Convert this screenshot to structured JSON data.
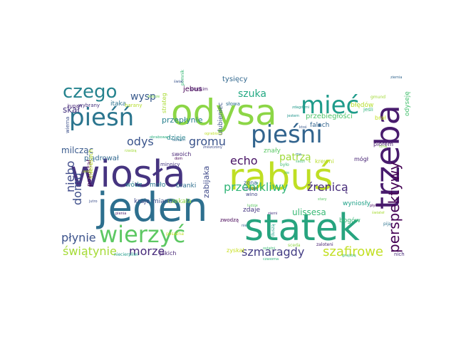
{
  "wordcloud": {
    "words": [
      {
        "text": "jeden",
        "color": "#2d6f8e"
      },
      {
        "text": "wiosła",
        "color": "#463480"
      },
      {
        "text": "statek",
        "color": "#27a47f"
      },
      {
        "text": "odysa",
        "color": "#8cd646"
      },
      {
        "text": "rabuś",
        "color": "#bfdf24"
      },
      {
        "text": "trzeba",
        "color": "#481b6d"
      },
      {
        "text": "pieśni",
        "color": "#32648e"
      },
      {
        "text": "wierzyć",
        "color": "#5dc863"
      },
      {
        "text": "pieśń",
        "color": "#2b758e"
      },
      {
        "text": "mieć",
        "color": "#1e9b8a"
      },
      {
        "text": "czego",
        "color": "#25838e"
      },
      {
        "text": "perspektywy",
        "color": "#440154"
      },
      {
        "text": "szafirowe",
        "color": "#c2df23"
      },
      {
        "text": "szmaragdy",
        "color": "#433d84"
      },
      {
        "text": "świątynie",
        "color": "#a5db36"
      },
      {
        "text": "płynie",
        "color": "#3b528b"
      },
      {
        "text": "morze",
        "color": "#472a7a"
      },
      {
        "text": "niebo",
        "color": "#3e4989"
      },
      {
        "text": "echo",
        "color": "#471164"
      },
      {
        "text": "domu",
        "color": "#3d4e8a"
      },
      {
        "text": "odys",
        "color": "#3a548c"
      },
      {
        "text": "przenikliwy",
        "color": "#34b679"
      },
      {
        "text": "źrenicą",
        "color": "#472c7a"
      },
      {
        "text": "gromu",
        "color": "#3a538b"
      },
      {
        "text": "szuka",
        "color": "#23a983"
      },
      {
        "text": "patrzą",
        "color": "#a0da39"
      },
      {
        "text": "wysp",
        "color": "#38598c"
      },
      {
        "text": "skał",
        "color": "#46337f"
      },
      {
        "text": "milcząc",
        "color": "#38598c"
      },
      {
        "text": "ulissesa",
        "color": "#3aba76"
      },
      {
        "text": "przebiegłości",
        "color": "#50c46a"
      },
      {
        "text": "zabijaka",
        "color": "#3e4989"
      },
      {
        "text": "przepłynie",
        "color": "#27808e"
      },
      {
        "text": "tysięcy",
        "color": "#31678e"
      },
      {
        "text": "jebus",
        "color": "#440154"
      },
      {
        "text": "plądrował",
        "color": "#31688e"
      },
      {
        "text": "dzieje",
        "color": "#26828e"
      },
      {
        "text": "branki",
        "color": "#2e6e8e"
      },
      {
        "text": "kraje",
        "color": "#3e4a89"
      },
      {
        "text": "czekała",
        "color": "#8ed645"
      },
      {
        "text": "miano",
        "color": "#3b518b"
      },
      {
        "text": "wódz",
        "color": "#277f8e"
      },
      {
        "text": "mało",
        "color": "#2a788e"
      },
      {
        "text": "zdaje",
        "color": "#453581"
      },
      {
        "text": "bogów",
        "color": "#37b878"
      },
      {
        "text": "wyniosły",
        "color": "#1fa188"
      },
      {
        "text": "falach",
        "color": "#32648e"
      },
      {
        "text": "błędów",
        "color": "#b5de2b"
      },
      {
        "text": "itaka",
        "color": "#2c728e"
      },
      {
        "text": "pozostał",
        "color": "#440154"
      },
      {
        "text": "ulubieniec",
        "color": "#3b528b"
      },
      {
        "text": "znały",
        "color": "#5ac864"
      },
      {
        "text": "jakich",
        "color": "#482677"
      },
      {
        "text": "zyskał",
        "color": "#c8e020"
      },
      {
        "text": "swoich",
        "color": "#482677"
      },
      {
        "text": "piórem",
        "color": "#481a6c"
      },
      {
        "text": "mógł",
        "color": "#482475"
      },
      {
        "text": "zona",
        "color": "#31668e"
      },
      {
        "text": "może",
        "color": "#38598c"
      },
      {
        "text": "wino",
        "color": "#404588"
      },
      {
        "text": "krewni",
        "color": "#b8de29"
      },
      {
        "text": "brał",
        "color": "#c2df23"
      },
      {
        "text": "interesach",
        "color": "#bddf26"
      },
      {
        "text": "odyseję",
        "color": "#46c06f"
      },
      {
        "text": "wierna",
        "color": "#3c508b"
      },
      {
        "text": "strateg",
        "color": "#a8db34"
      },
      {
        "text": "słowa",
        "color": "#2e6f8e"
      },
      {
        "text": "jeśli",
        "color": "#31b57b"
      },
      {
        "text": "nich",
        "color": "#472d7b"
      },
      {
        "text": "zwodzą",
        "color": "#440154"
      },
      {
        "text": "minnicy",
        "color": "#453882"
      },
      {
        "text": "barany",
        "color": "#b5de2b"
      },
      {
        "text": "żupan",
        "color": "#482878"
      },
      {
        "text": "wybrany",
        "color": "#46327e"
      },
      {
        "text": "pomnik",
        "color": "#38b977"
      },
      {
        "text": "skodkim",
        "color": "#48186a"
      },
      {
        "text": "zniszczony",
        "color": "#3e4c8a"
      },
      {
        "text": "sceda",
        "color": "#8fd744"
      },
      {
        "text": "zaloteni",
        "color": "#482173"
      },
      {
        "text": "rzną",
        "color": "#89d548"
      },
      {
        "text": "piją",
        "color": "#2c738e"
      },
      {
        "text": "duszą",
        "color": "#1fa187"
      },
      {
        "text": "posażna",
        "color": "#c0df25"
      },
      {
        "text": "niecierpliwi",
        "color": "#1e9c89"
      },
      {
        "text": "ostatni",
        "color": "#3bbb75"
      },
      {
        "text": "czasoma",
        "color": "#31b57b"
      },
      {
        "text": "gnajdzą",
        "color": "#38b977"
      },
      {
        "text": "rzadzą",
        "color": "#a2da37"
      },
      {
        "text": "dobrze",
        "color": "#7ad151"
      },
      {
        "text": "obrabowan",
        "color": "#2ab07f"
      },
      {
        "text": "ograbiony",
        "color": "#bddf26"
      },
      {
        "text": "nie",
        "color": "#34618d"
      },
      {
        "text": "ziemi",
        "color": "#463480"
      },
      {
        "text": "jasno",
        "color": "#b5de2b"
      },
      {
        "text": "gmund",
        "color": "#a2da37"
      },
      {
        "text": "świat",
        "color": "#3a548c"
      },
      {
        "text": "jestem",
        "color": "#1f948c"
      },
      {
        "text": "zdagdżmi",
        "color": "#1f998a"
      },
      {
        "text": "było",
        "color": "#40bd72"
      },
      {
        "text": "obieśni",
        "color": "#2e6e8e"
      },
      {
        "text": "sie",
        "color": "#40bd72"
      },
      {
        "text": "stary",
        "color": "#5cc863"
      },
      {
        "text": "pienia",
        "color": "#48186a"
      },
      {
        "text": "ludzie",
        "color": "#5ec962"
      },
      {
        "text": "ziemia",
        "color": "#32658e"
      },
      {
        "text": "świateł",
        "color": "#a8db34"
      },
      {
        "text": "jutro",
        "color": "#3c4f8a"
      },
      {
        "text": "ma",
        "color": "#2a778e"
      },
      {
        "text": "pływak",
        "color": "#471063"
      },
      {
        "text": "sadzi",
        "color": "#3fbc73"
      },
      {
        "text": "dom",
        "color": "#440154"
      },
      {
        "text": "ktoś",
        "color": "#38598c"
      }
    ]
  }
}
